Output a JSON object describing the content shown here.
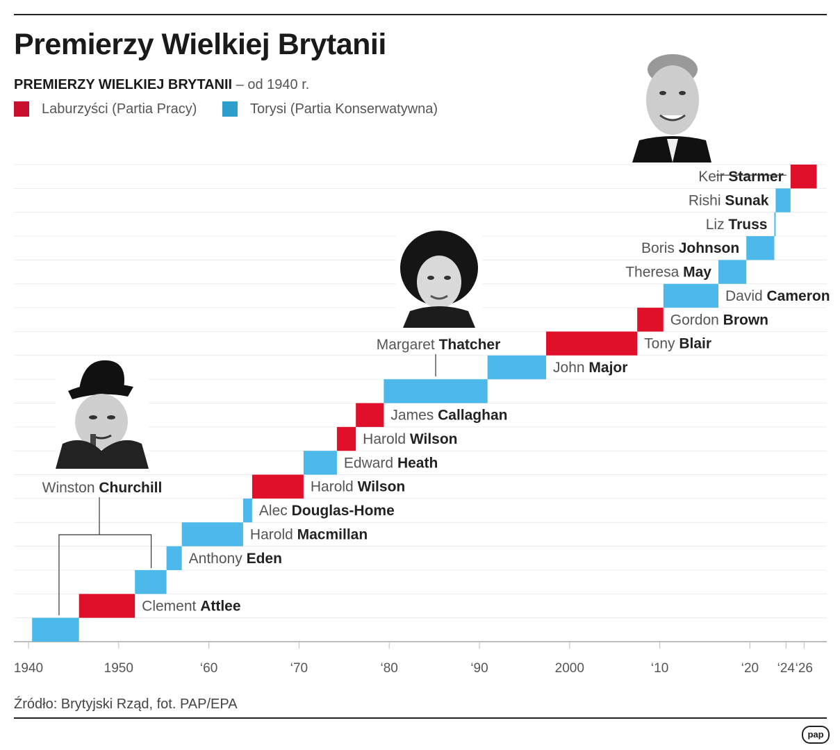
{
  "title": "Premierzy Wielkiej Brytanii",
  "subtitle_bold": "PREMIERZY WIELKIEJ BRYTANII",
  "subtitle_rest": " – od 1940 r.",
  "source": "Źródło: Brytyjski Rząd, fot. PAP/EPA",
  "logo": "pap",
  "colors": {
    "labour": "#e0102b",
    "conservative": "#4db8ea"
  },
  "chart_data": {
    "type": "bar",
    "subtype": "gantt",
    "xlim": [
      1938.5,
      2028
    ],
    "legend": [
      {
        "party": "labour",
        "label": "Laburzyści (Partia Pracy)"
      },
      {
        "party": "conservative",
        "label": "Torysi (Partia Konserwatywna)"
      }
    ],
    "x_ticks": [
      {
        "value": 1940,
        "label": "1940"
      },
      {
        "value": 1950,
        "label": "1950"
      },
      {
        "value": 1960,
        "label": "‘60"
      },
      {
        "value": 1970,
        "label": "‘70"
      },
      {
        "value": 1980,
        "label": "‘80"
      },
      {
        "value": 1990,
        "label": "‘90"
      },
      {
        "value": 2000,
        "label": "2000"
      },
      {
        "value": 2010,
        "label": "‘10"
      },
      {
        "value": 2020,
        "label": "‘20"
      },
      {
        "value": 2024,
        "label": "‘24"
      },
      {
        "value": 2026,
        "label": "‘26"
      }
    ],
    "terms": [
      {
        "first": "",
        "last": "",
        "start": 1940.4,
        "end": 1945.6,
        "party": "conservative"
      },
      {
        "first": "Clement",
        "last": "Attlee",
        "start": 1945.6,
        "end": 1951.8,
        "party": "labour"
      },
      {
        "first": "",
        "last": "",
        "start": 1951.8,
        "end": 1955.3,
        "party": "conservative"
      },
      {
        "first": "Anthony",
        "last": "Eden",
        "start": 1955.3,
        "end": 1957.0,
        "party": "conservative"
      },
      {
        "first": "Harold",
        "last": "Macmillan",
        "start": 1957.0,
        "end": 1963.8,
        "party": "conservative"
      },
      {
        "first": "Alec",
        "last": "Douglas-Home",
        "start": 1963.8,
        "end": 1964.8,
        "party": "conservative"
      },
      {
        "first": "Harold",
        "last": "Wilson",
        "start": 1964.8,
        "end": 1970.5,
        "party": "labour"
      },
      {
        "first": "Edward",
        "last": "Heath",
        "start": 1970.5,
        "end": 1974.2,
        "party": "conservative"
      },
      {
        "first": "Harold",
        "last": "Wilson",
        "start": 1974.2,
        "end": 1976.3,
        "party": "labour"
      },
      {
        "first": "James",
        "last": "Callaghan",
        "start": 1976.3,
        "end": 1979.4,
        "party": "labour"
      },
      {
        "first": "",
        "last": "",
        "start": 1979.4,
        "end": 1990.9,
        "party": "conservative"
      },
      {
        "first": "John",
        "last": "Major",
        "start": 1990.9,
        "end": 1997.4,
        "party": "conservative"
      },
      {
        "first": "Tony",
        "last": "Blair",
        "start": 1997.4,
        "end": 2007.5,
        "party": "labour"
      },
      {
        "first": "Gordon",
        "last": "Brown",
        "start": 2007.5,
        "end": 2010.4,
        "party": "labour"
      },
      {
        "first": "David",
        "last": "Cameron",
        "start": 2010.4,
        "end": 2016.5,
        "party": "conservative"
      },
      {
        "first": "Theresa",
        "last": "May",
        "start": 2016.5,
        "end": 2019.6,
        "party": "conservative"
      },
      {
        "first": "Boris",
        "last": "Johnson",
        "start": 2019.6,
        "end": 2022.7,
        "party": "conservative"
      },
      {
        "first": "Liz",
        "last": "Truss",
        "start": 2022.7,
        "end": 2022.85,
        "party": "conservative"
      },
      {
        "first": "Rishi",
        "last": "Sunak",
        "start": 2022.85,
        "end": 2024.5,
        "party": "conservative"
      },
      {
        "first": "Keir",
        "last": "Starmer",
        "start": 2024.5,
        "end": 2027.4,
        "party": "labour"
      }
    ],
    "callouts": [
      {
        "first": "Winston",
        "last": "Churchill",
        "terms": [
          1940.4,
          1951.8
        ],
        "portrait": "churchill-portrait"
      },
      {
        "first": "Margaret",
        "last": "Thatcher",
        "terms": [
          1979.4
        ],
        "portrait": "thatcher-portrait"
      },
      {
        "first": "Keir",
        "last": "Starmer",
        "terms": [
          2024.5
        ],
        "portrait": "starmer-portrait"
      }
    ]
  }
}
